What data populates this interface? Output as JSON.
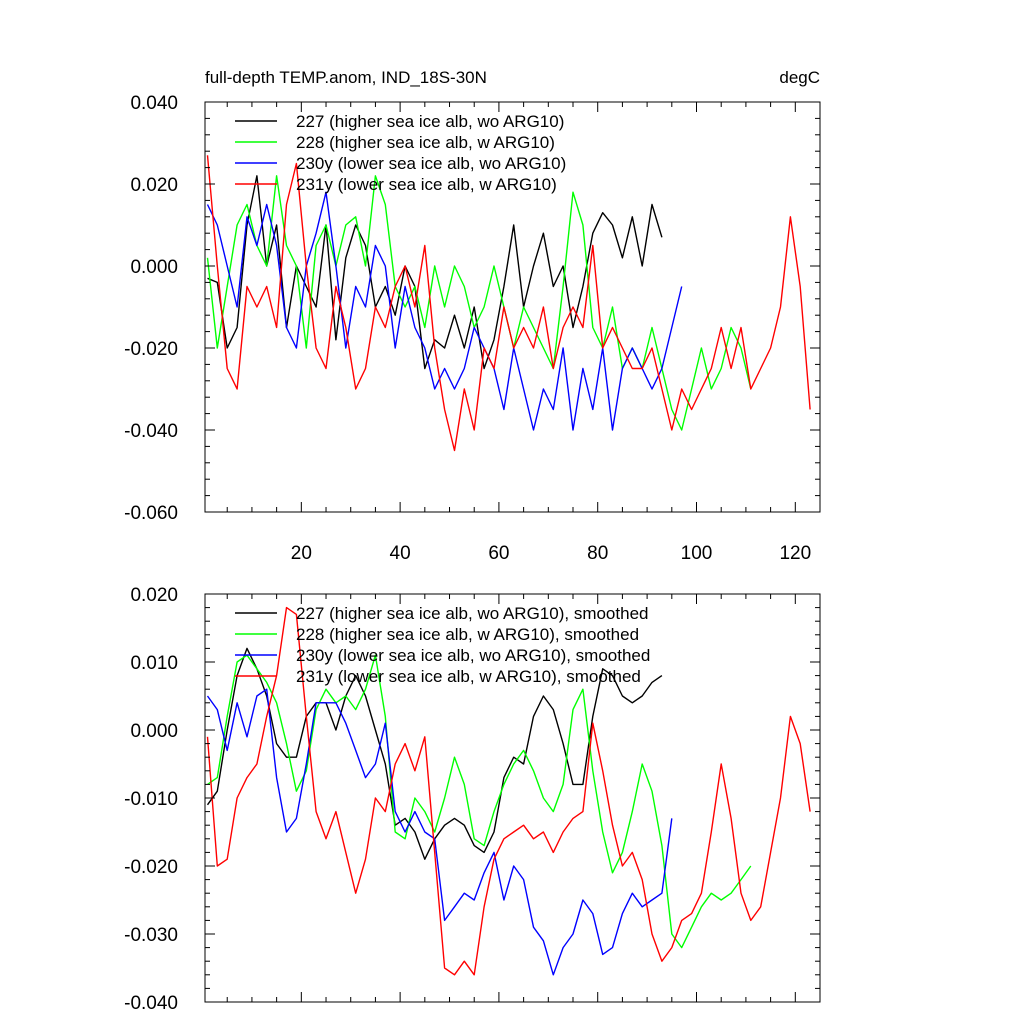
{
  "chart_data": [
    {
      "type": "line",
      "title": "full-depth TEMP.anom, IND_18S-30N",
      "units": "degC",
      "xlabel": "",
      "ylabel": "",
      "xlim": [
        0.5,
        125
      ],
      "ylim": [
        -0.06,
        0.04
      ],
      "yticks": [
        -0.06,
        -0.04,
        -0.02,
        0.0,
        0.02,
        0.04
      ],
      "ytick_labels": [
        "-0.060",
        "-0.040",
        "-0.020",
        "0.000",
        "0.020",
        "0.040"
      ],
      "xticks": [
        20,
        40,
        60,
        80,
        100,
        120
      ],
      "xtick_labels": [
        "20",
        "40",
        "60",
        "80",
        "100",
        "120"
      ],
      "show_xtick_labels": true,
      "legend_position": "top-left",
      "series": [
        {
          "name": "227 (higher sea ice alb, wo ARG10)",
          "color": "#000000",
          "x": [
            1,
            3,
            5,
            7,
            9,
            11,
            13,
            15,
            17,
            19,
            21,
            23,
            25,
            27,
            29,
            31,
            33,
            35,
            37,
            39,
            41,
            43,
            45,
            47,
            49,
            51,
            53,
            55,
            57,
            59,
            61,
            63,
            65,
            67,
            69,
            71,
            73,
            75,
            77,
            79,
            81,
            83,
            85,
            87,
            89,
            91,
            93
          ],
          "values": [
            -0.003,
            -0.004,
            -0.02,
            -0.015,
            0.01,
            0.022,
            0.0,
            0.01,
            -0.015,
            0.0,
            -0.005,
            -0.01,
            0.01,
            -0.018,
            0.002,
            0.01,
            0.005,
            -0.01,
            -0.005,
            -0.012,
            0.0,
            -0.005,
            -0.025,
            -0.018,
            -0.02,
            -0.012,
            -0.02,
            -0.01,
            -0.025,
            -0.018,
            -0.005,
            0.01,
            -0.01,
            0.0,
            0.008,
            -0.005,
            0.0,
            -0.015,
            -0.005,
            0.008,
            0.013,
            0.01,
            0.002,
            0.012,
            0.0,
            0.015,
            0.007
          ]
        },
        {
          "name": "228 (higher sea ice alb, w ARG10)",
          "color": "#00ff00",
          "x": [
            1,
            3,
            5,
            7,
            9,
            11,
            13,
            15,
            17,
            19,
            21,
            23,
            25,
            27,
            29,
            31,
            33,
            35,
            37,
            39,
            41,
            43,
            45,
            47,
            49,
            51,
            53,
            55,
            57,
            59,
            61,
            63,
            65,
            67,
            69,
            71,
            73,
            75,
            77,
            79,
            81,
            83,
            85,
            87,
            89,
            91,
            93,
            95,
            97,
            99,
            101,
            103,
            105,
            107,
            109,
            111
          ],
          "values": [
            0.002,
            -0.02,
            -0.005,
            0.01,
            0.015,
            0.005,
            0.0,
            0.022,
            0.005,
            0.0,
            -0.02,
            0.005,
            0.01,
            0.0,
            0.01,
            0.012,
            0.0,
            0.022,
            0.015,
            -0.005,
            -0.01,
            -0.005,
            -0.015,
            0.0,
            -0.01,
            0.0,
            -0.005,
            -0.015,
            -0.01,
            0.0,
            -0.01,
            -0.02,
            -0.01,
            -0.015,
            -0.02,
            -0.025,
            -0.005,
            0.018,
            0.01,
            -0.015,
            -0.02,
            -0.01,
            -0.025,
            -0.02,
            -0.025,
            -0.015,
            -0.025,
            -0.035,
            -0.04,
            -0.03,
            -0.02,
            -0.03,
            -0.025,
            -0.015,
            -0.02,
            -0.03
          ]
        },
        {
          "name": "230y (lower sea ice alb, wo ARG10)",
          "color": "#0000ff",
          "x": [
            1,
            3,
            5,
            7,
            9,
            11,
            13,
            15,
            17,
            19,
            21,
            23,
            25,
            27,
            29,
            31,
            33,
            35,
            37,
            39,
            41,
            43,
            45,
            47,
            49,
            51,
            53,
            55,
            57,
            59,
            61,
            63,
            65,
            67,
            69,
            71,
            73,
            75,
            77,
            79,
            81,
            83,
            85,
            87,
            89,
            91,
            93,
            95,
            97
          ],
          "values": [
            0.015,
            0.01,
            0.0,
            -0.01,
            0.012,
            0.005,
            0.015,
            0.005,
            -0.015,
            -0.02,
            0.0,
            0.008,
            0.018,
            0.0,
            -0.02,
            -0.005,
            -0.01,
            0.005,
            0.0,
            -0.02,
            -0.005,
            -0.015,
            -0.02,
            -0.03,
            -0.025,
            -0.03,
            -0.025,
            -0.015,
            -0.02,
            -0.025,
            -0.035,
            -0.02,
            -0.03,
            -0.04,
            -0.03,
            -0.035,
            -0.02,
            -0.04,
            -0.025,
            -0.035,
            -0.02,
            -0.04,
            -0.025,
            -0.02,
            -0.025,
            -0.03,
            -0.025,
            -0.015,
            -0.005
          ]
        },
        {
          "name": "231y (lower sea ice alb, w ARG10)",
          "color": "#ff0000",
          "x": [
            1,
            3,
            5,
            7,
            9,
            11,
            13,
            15,
            17,
            19,
            21,
            23,
            25,
            27,
            29,
            31,
            33,
            35,
            37,
            39,
            41,
            43,
            45,
            47,
            49,
            51,
            53,
            55,
            57,
            59,
            61,
            63,
            65,
            67,
            69,
            71,
            73,
            75,
            77,
            79,
            81,
            83,
            85,
            87,
            89,
            91,
            93,
            95,
            97,
            99,
            101,
            103,
            105,
            107,
            109,
            111,
            113,
            115,
            117,
            119,
            121,
            123
          ],
          "values": [
            0.027,
            0.0,
            -0.025,
            -0.03,
            -0.005,
            -0.01,
            -0.005,
            -0.015,
            0.015,
            0.025,
            0.0,
            -0.02,
            -0.025,
            -0.005,
            -0.015,
            -0.03,
            -0.025,
            -0.01,
            -0.015,
            -0.005,
            0.0,
            -0.01,
            0.005,
            -0.02,
            -0.035,
            -0.045,
            -0.03,
            -0.04,
            -0.02,
            -0.025,
            -0.01,
            -0.02,
            -0.015,
            -0.02,
            -0.01,
            -0.025,
            -0.015,
            -0.01,
            -0.015,
            0.005,
            -0.02,
            -0.015,
            -0.02,
            -0.025,
            -0.025,
            -0.02,
            -0.03,
            -0.04,
            -0.03,
            -0.035,
            -0.03,
            -0.025,
            -0.015,
            -0.025,
            -0.015,
            -0.03,
            -0.025,
            -0.02,
            -0.01,
            0.012,
            -0.005,
            -0.035
          ]
        }
      ]
    },
    {
      "type": "line",
      "title": "",
      "xlabel": "",
      "ylabel": "",
      "xlim": [
        0.5,
        125
      ],
      "ylim": [
        -0.04,
        0.02
      ],
      "yticks": [
        -0.04,
        -0.03,
        -0.02,
        -0.01,
        0.0,
        0.01,
        0.02
      ],
      "ytick_labels": [
        "-0.040",
        "-0.030",
        "-0.020",
        "-0.010",
        "0.000",
        "0.010",
        "0.020"
      ],
      "xticks": [
        20,
        40,
        60,
        80,
        100,
        120
      ],
      "show_xtick_labels": false,
      "legend_position": "top-left",
      "series": [
        {
          "name": "227 (higher sea ice alb, wo ARG10), smoothed",
          "color": "#000000",
          "x": [
            1,
            3,
            5,
            7,
            9,
            11,
            13,
            15,
            17,
            19,
            21,
            23,
            25,
            27,
            29,
            31,
            33,
            35,
            37,
            39,
            41,
            43,
            45,
            47,
            49,
            51,
            53,
            55,
            57,
            59,
            61,
            63,
            65,
            67,
            69,
            71,
            73,
            75,
            77,
            79,
            81,
            83,
            85,
            87,
            89,
            91,
            93
          ],
          "values": [
            -0.011,
            -0.009,
            0.0,
            0.008,
            0.012,
            0.009,
            0.005,
            -0.002,
            -0.004,
            -0.004,
            0.002,
            0.004,
            0.004,
            0.0,
            0.005,
            0.008,
            0.005,
            0.0,
            -0.005,
            -0.014,
            -0.013,
            -0.015,
            -0.019,
            -0.016,
            -0.014,
            -0.013,
            -0.014,
            -0.017,
            -0.018,
            -0.015,
            -0.007,
            -0.004,
            -0.005,
            0.002,
            0.005,
            0.003,
            -0.002,
            -0.008,
            -0.008,
            0.002,
            0.009,
            0.008,
            0.005,
            0.004,
            0.005,
            0.007,
            0.008
          ]
        },
        {
          "name": "228 (higher sea ice alb, w ARG10), smoothed",
          "color": "#00ff00",
          "x": [
            1,
            3,
            5,
            7,
            9,
            11,
            13,
            15,
            17,
            19,
            21,
            23,
            25,
            27,
            29,
            31,
            33,
            35,
            37,
            39,
            41,
            43,
            45,
            47,
            49,
            51,
            53,
            55,
            57,
            59,
            61,
            63,
            65,
            67,
            69,
            71,
            73,
            75,
            77,
            79,
            81,
            83,
            85,
            87,
            89,
            91,
            93,
            95,
            97,
            99,
            101,
            103,
            105,
            107,
            109,
            111
          ],
          "values": [
            -0.008,
            -0.007,
            0.002,
            0.01,
            0.011,
            0.009,
            0.007,
            0.004,
            -0.002,
            -0.009,
            -0.006,
            0.003,
            0.006,
            0.004,
            0.005,
            0.003,
            0.006,
            0.011,
            0.002,
            -0.015,
            -0.016,
            -0.01,
            -0.012,
            -0.015,
            -0.01,
            -0.004,
            -0.008,
            -0.016,
            -0.017,
            -0.012,
            -0.008,
            -0.005,
            -0.003,
            -0.006,
            -0.01,
            -0.012,
            -0.008,
            0.003,
            0.006,
            -0.006,
            -0.015,
            -0.021,
            -0.018,
            -0.012,
            -0.005,
            -0.009,
            -0.017,
            -0.03,
            -0.032,
            -0.029,
            -0.026,
            -0.024,
            -0.025,
            -0.024,
            -0.022,
            -0.02
          ]
        },
        {
          "name": "230y (lower sea ice alb, wo ARG10), smoothed",
          "color": "#0000ff",
          "x": [
            1,
            3,
            5,
            7,
            9,
            11,
            13,
            15,
            17,
            19,
            21,
            23,
            25,
            27,
            29,
            31,
            33,
            35,
            37,
            39,
            41,
            43,
            45,
            47,
            49,
            51,
            53,
            55,
            57,
            59,
            61,
            63,
            65,
            67,
            69,
            71,
            73,
            75,
            77,
            79,
            81,
            83,
            85,
            87,
            89,
            91,
            93,
            95
          ],
          "values": [
            0.005,
            0.003,
            -0.003,
            0.004,
            -0.001,
            0.005,
            0.006,
            -0.007,
            -0.015,
            -0.013,
            -0.005,
            0.004,
            0.004,
            0.004,
            0.001,
            -0.003,
            -0.007,
            -0.005,
            0.001,
            -0.012,
            -0.015,
            -0.012,
            -0.015,
            -0.016,
            -0.028,
            -0.026,
            -0.024,
            -0.025,
            -0.021,
            -0.018,
            -0.025,
            -0.02,
            -0.022,
            -0.029,
            -0.031,
            -0.036,
            -0.032,
            -0.03,
            -0.025,
            -0.027,
            -0.033,
            -0.032,
            -0.027,
            -0.024,
            -0.026,
            -0.025,
            -0.024,
            -0.013
          ]
        },
        {
          "name": "231y (lower sea ice alb, w ARG10), smoothed",
          "color": "#ff0000",
          "x": [
            1,
            3,
            5,
            7,
            9,
            11,
            13,
            15,
            17,
            19,
            21,
            23,
            25,
            27,
            29,
            31,
            33,
            35,
            37,
            39,
            41,
            43,
            45,
            47,
            49,
            51,
            53,
            55,
            57,
            59,
            61,
            63,
            65,
            67,
            69,
            71,
            73,
            75,
            77,
            79,
            81,
            83,
            85,
            87,
            89,
            91,
            93,
            95,
            97,
            99,
            101,
            103,
            105,
            107,
            109,
            111,
            113,
            115,
            117,
            119,
            121,
            123
          ],
          "values": [
            -0.001,
            -0.02,
            -0.019,
            -0.01,
            -0.007,
            -0.005,
            0.002,
            0.008,
            0.018,
            0.017,
            0.002,
            -0.012,
            -0.016,
            -0.012,
            -0.018,
            -0.024,
            -0.019,
            -0.01,
            -0.012,
            -0.005,
            -0.002,
            -0.006,
            -0.001,
            -0.018,
            -0.035,
            -0.036,
            -0.034,
            -0.036,
            -0.026,
            -0.019,
            -0.016,
            -0.015,
            -0.014,
            -0.016,
            -0.015,
            -0.018,
            -0.015,
            -0.013,
            -0.012,
            0.001,
            -0.006,
            -0.014,
            -0.02,
            -0.018,
            -0.022,
            -0.03,
            -0.034,
            -0.032,
            -0.028,
            -0.027,
            -0.024,
            -0.015,
            -0.005,
            -0.013,
            -0.024,
            -0.028,
            -0.026,
            -0.018,
            -0.01,
            0.002,
            -0.002,
            -0.012
          ]
        }
      ]
    }
  ]
}
